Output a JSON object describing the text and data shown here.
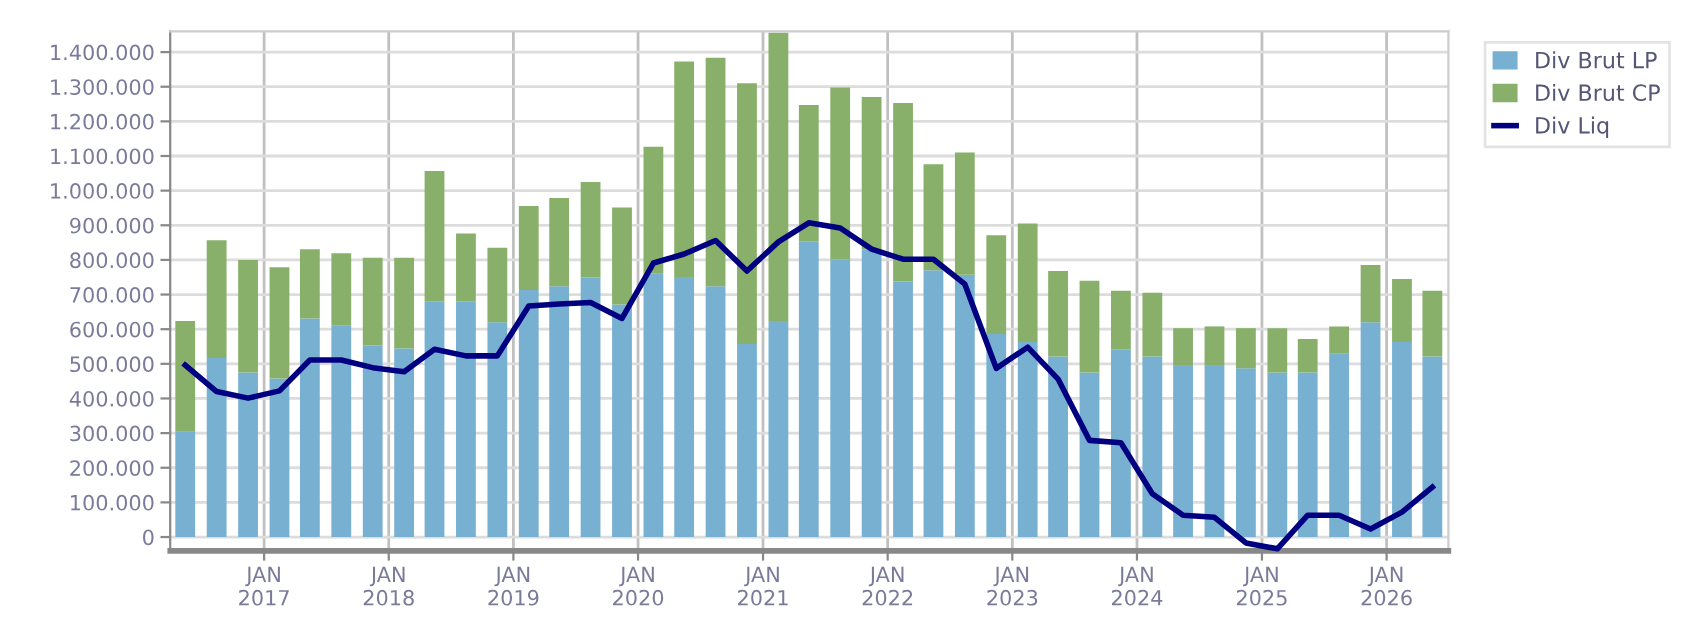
{
  "chart_data": {
    "type": "bar",
    "stacked": true,
    "x": [
      "2016-05-15",
      "2016-08-15",
      "2016-11-15",
      "2017-02-15",
      "2017-05-15",
      "2017-08-15",
      "2017-11-15",
      "2018-02-15",
      "2018-05-15",
      "2018-08-15",
      "2018-11-15",
      "2019-02-15",
      "2019-05-15",
      "2019-08-15",
      "2019-11-15",
      "2020-02-15",
      "2020-05-15",
      "2020-08-15",
      "2020-11-15",
      "2021-02-15",
      "2021-05-15",
      "2021-08-15",
      "2021-11-15",
      "2022-02-15",
      "2022-05-15",
      "2022-08-15",
      "2022-11-15",
      "2023-02-15",
      "2023-05-15",
      "2023-08-15",
      "2023-11-15",
      "2024-02-15",
      "2024-05-15",
      "2024-08-15",
      "2024-11-15",
      "2025-02-15",
      "2025-05-15",
      "2025-08-15",
      "2025-11-15",
      "2026-02-15",
      "2026-05-15"
    ],
    "series": [
      {
        "name": "Div Brut LP",
        "color": "#78b0d2",
        "values": [
          304000,
          517000,
          475000,
          458000,
          631000,
          610000,
          553000,
          544000,
          681000,
          681000,
          620000,
          713000,
          724000,
          749000,
          671000,
          760000,
          751000,
          724000,
          557000,
          624000,
          854000,
          802000,
          831000,
          738000,
          770000,
          757000,
          586000,
          563000,
          521000,
          475000,
          542000,
          521000,
          494000,
          494000,
          487000,
          475000,
          475000,
          529000,
          620000,
          563000,
          521000
        ]
      },
      {
        "name": "Div Brut CP",
        "color": "#88b06a",
        "values": [
          320000,
          340000,
          325000,
          321000,
          200000,
          209000,
          253000,
          262000,
          376000,
          195000,
          215000,
          243000,
          255000,
          276000,
          280000,
          367000,
          622000,
          660000,
          753000,
          832000,
          393000,
          496000,
          439000,
          515000,
          306000,
          353000,
          285000,
          342000,
          247000,
          265000,
          169000,
          184000,
          109000,
          114000,
          116000,
          128000,
          97000,
          79000,
          165000,
          182000,
          190000
        ]
      },
      {
        "name": "Div Liq",
        "type": "line",
        "color": "#000080",
        "values": [
          496000,
          420000,
          401000,
          422000,
          511000,
          511000,
          489000,
          477000,
          542000,
          523000,
          523000,
          667000,
          673000,
          677000,
          631000,
          791000,
          817000,
          856000,
          768000,
          852000,
          907000,
          892000,
          831000,
          802000,
          802000,
          730000,
          487000,
          548000,
          456000,
          279000,
          272000,
          125000,
          63000,
          57000,
          -17000,
          -34000,
          63000,
          63000,
          23000,
          72000,
          144000
        ]
      }
    ],
    "xlim": [
      "2016-04-01",
      "2026-07-01"
    ],
    "xticks": [
      {
        "value": "2017-01-01",
        "label": "JAN\n2017"
      },
      {
        "value": "2018-01-01",
        "label": "JAN\n2018"
      },
      {
        "value": "2019-01-01",
        "label": "JAN\n2019"
      },
      {
        "value": "2020-01-01",
        "label": "JAN\n2020"
      },
      {
        "value": "2021-01-01",
        "label": "JAN\n2021"
      },
      {
        "value": "2022-01-01",
        "label": "JAN\n2022"
      },
      {
        "value": "2023-01-01",
        "label": "JAN\n2023"
      },
      {
        "value": "2024-01-01",
        "label": "JAN\n2024"
      },
      {
        "value": "2025-01-01",
        "label": "JAN\n2025"
      },
      {
        "value": "2026-01-01",
        "label": "JAN\n2026"
      }
    ],
    "ylim": [
      -40000,
      1460000
    ],
    "yticks": [
      0,
      {
        "value": 100000,
        "label": "100.000"
      },
      {
        "value": 200000,
        "label": "200.000"
      },
      {
        "value": 300000,
        "label": "300.000"
      },
      {
        "value": 400000,
        "label": "400.000"
      },
      {
        "value": 500000,
        "label": "500.000"
      },
      {
        "value": 600000,
        "label": "600.000"
      },
      {
        "value": 700000,
        "label": "700.000"
      },
      {
        "value": 800000,
        "label": "800.000"
      },
      {
        "value": 900000,
        "label": "900.000"
      },
      {
        "value": 1000000,
        "label": "1.000.000"
      },
      {
        "value": 1100000,
        "label": "1.100.000"
      },
      {
        "value": 1200000,
        "label": "1.200.000"
      },
      {
        "value": 1300000,
        "label": "1.300.000"
      },
      {
        "value": 1400000,
        "label": "1.400.000"
      }
    ],
    "grid": true,
    "legend": "top right",
    "line_style": "solid",
    "marker": "none"
  }
}
